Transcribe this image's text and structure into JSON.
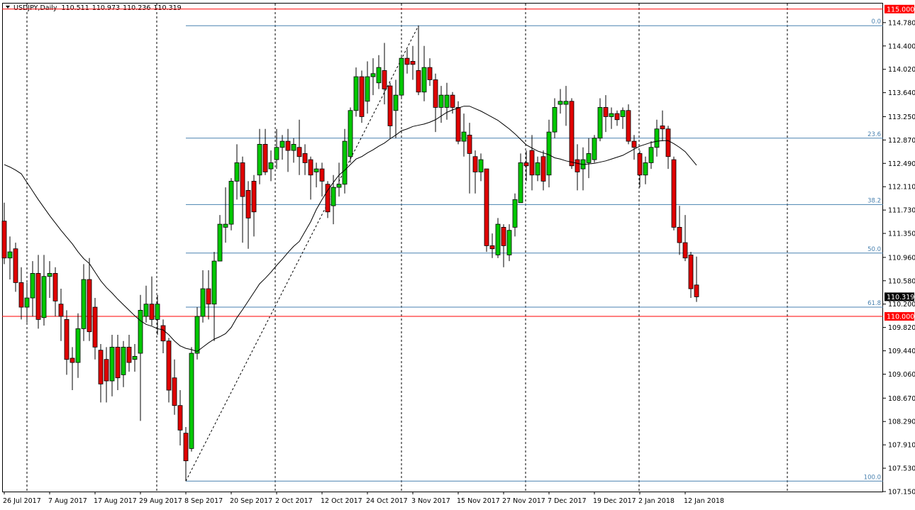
{
  "chart_data": {
    "type": "candlestick",
    "symbol": "USDJPY,Daily",
    "up_color": "#00c800",
    "down_color": "#e00000",
    "ma_color": "#000000",
    "ylim": [
      107.15,
      115.09
    ],
    "yticks": [
      {
        "value": 114.78,
        "label": "114.780"
      },
      {
        "value": 114.4,
        "label": "114.400"
      },
      {
        "value": 114.02,
        "label": "114.020"
      },
      {
        "value": 113.64,
        "label": "113.640"
      },
      {
        "value": 113.25,
        "label": "113.250"
      },
      {
        "value": 112.87,
        "label": "112.870"
      },
      {
        "value": 112.49,
        "label": "112.490"
      },
      {
        "value": 112.11,
        "label": "112.110"
      },
      {
        "value": 111.73,
        "label": "111.730"
      },
      {
        "value": 111.35,
        "label": "111.350"
      },
      {
        "value": 110.96,
        "label": "110.960"
      },
      {
        "value": 110.58,
        "label": "110.580"
      },
      {
        "value": 110.2,
        "label": "110.200"
      },
      {
        "value": 109.82,
        "label": "109.820"
      },
      {
        "value": 109.44,
        "label": "109.440"
      },
      {
        "value": 109.06,
        "label": "109.060"
      },
      {
        "value": 108.67,
        "label": "108.670"
      },
      {
        "value": 108.29,
        "label": "108.290"
      },
      {
        "value": 107.91,
        "label": "107.910"
      },
      {
        "value": 107.53,
        "label": "107.530"
      },
      {
        "value": 107.15,
        "label": "107.150"
      }
    ],
    "levels": [
      {
        "value": 115,
        "label": "115.000",
        "color": "#ff0000"
      },
      {
        "value": 110,
        "label": "110.000",
        "color": "#ff0000"
      }
    ],
    "fibonacci": {
      "color": "#4a82b0",
      "levels": [
        {
          "label": "0.0",
          "value": 114.73
        },
        {
          "label": "23.6",
          "value": 112.9
        },
        {
          "label": "38.2",
          "value": 111.82
        },
        {
          "label": "50.0",
          "value": 111.03
        },
        {
          "label": "61.8",
          "value": 110.15
        },
        {
          "label": "100.0",
          "value": 107.32
        }
      ]
    },
    "categories": [
      "26 Jul 2017",
      null,
      null,
      null,
      null,
      null,
      null,
      null,
      "7 Aug 2017",
      null,
      null,
      null,
      null,
      null,
      null,
      null,
      "17 Aug 2017",
      null,
      null,
      null,
      null,
      null,
      null,
      null,
      "29 Aug 2017",
      null,
      null,
      null,
      null,
      null,
      null,
      null,
      "8 Sep 2017",
      null,
      null,
      null,
      null,
      null,
      null,
      null,
      "20 Sep 2017",
      null,
      null,
      null,
      null,
      null,
      null,
      null,
      "2 Oct 2017",
      null,
      null,
      null,
      null,
      null,
      null,
      null,
      "12 Oct 2017",
      null,
      null,
      null,
      null,
      null,
      null,
      null,
      "24 Oct 2017",
      null,
      null,
      null,
      null,
      null,
      null,
      null,
      "3 Nov 2017",
      null,
      null,
      null,
      null,
      null,
      null,
      null,
      "15 Nov 2017",
      null,
      null,
      null,
      null,
      null,
      null,
      null,
      "27 Nov 2017",
      null,
      null,
      null,
      null,
      null,
      null,
      null,
      "7 Dec 2017",
      null,
      null,
      null,
      null,
      null,
      null,
      null,
      "19 Dec 2017",
      null,
      null,
      null,
      null,
      null,
      null,
      null,
      "2 Jan 2018",
      null,
      null,
      null,
      null,
      null,
      null,
      null,
      "12 Jan 2018",
      null,
      null
    ],
    "ohlc": [
      [
        111.55,
        111.85,
        110.85,
        110.95
      ],
      [
        110.95,
        111.3,
        110.6,
        111.05
      ],
      [
        111.1,
        111.2,
        110.4,
        110.55
      ],
      [
        110.55,
        110.8,
        109.95,
        110.15
      ],
      [
        110.15,
        110.55,
        109.9,
        110.3
      ],
      [
        110.3,
        110.9,
        110.0,
        110.7
      ],
      [
        110.7,
        111.0,
        109.8,
        109.95
      ],
      [
        109.98,
        111.0,
        109.85,
        110.65
      ],
      [
        110.65,
        110.9,
        110.3,
        110.7
      ],
      [
        110.7,
        110.8,
        110.0,
        110.25
      ],
      [
        110.2,
        110.45,
        109.6,
        110.0
      ],
      [
        109.95,
        110.1,
        109.05,
        109.3
      ],
      [
        109.32,
        109.5,
        108.8,
        109.25
      ],
      [
        109.25,
        110.05,
        109.0,
        109.8
      ],
      [
        109.8,
        110.85,
        109.6,
        110.6
      ],
      [
        110.6,
        110.95,
        109.6,
        109.75
      ],
      [
        110.15,
        110.3,
        109.3,
        109.5
      ],
      [
        109.45,
        109.55,
        108.6,
        108.9
      ],
      [
        109.3,
        109.5,
        108.6,
        108.95
      ],
      [
        108.95,
        109.7,
        108.7,
        109.5
      ],
      [
        109.5,
        109.7,
        108.8,
        109.0
      ],
      [
        109.05,
        109.6,
        108.85,
        109.5
      ],
      [
        109.5,
        109.7,
        109.1,
        109.25
      ],
      [
        109.3,
        109.55,
        109.1,
        109.35
      ],
      [
        109.4,
        110.35,
        108.3,
        110.1
      ],
      [
        110.0,
        110.5,
        109.9,
        110.2
      ],
      [
        110.2,
        110.65,
        109.85,
        109.95
      ],
      [
        109.95,
        110.35,
        109.7,
        110.2
      ],
      [
        109.85,
        109.95,
        109.4,
        109.6
      ],
      [
        109.6,
        109.65,
        108.6,
        108.8
      ],
      [
        109.0,
        109.3,
        108.4,
        108.55
      ],
      [
        108.55,
        108.8,
        107.9,
        108.15
      ],
      [
        108.1,
        108.2,
        107.32,
        107.65
      ],
      [
        107.85,
        109.5,
        107.8,
        109.4
      ],
      [
        109.4,
        110.15,
        109.3,
        110.0
      ],
      [
        110.0,
        110.75,
        109.9,
        110.45
      ],
      [
        110.45,
        110.75,
        109.95,
        110.2
      ],
      [
        110.2,
        111.05,
        109.6,
        110.9
      ],
      [
        110.9,
        111.65,
        110.9,
        111.5
      ],
      [
        111.45,
        112.1,
        111.2,
        111.5
      ],
      [
        111.5,
        112.25,
        111.4,
        112.2
      ],
      [
        112.2,
        112.8,
        111.9,
        112.5
      ],
      [
        112.5,
        112.6,
        111.2,
        111.95
      ],
      [
        112.05,
        112.2,
        111.1,
        111.6
      ],
      [
        112.2,
        112.3,
        111.3,
        111.7
      ],
      [
        112.3,
        113.05,
        112.15,
        112.8
      ],
      [
        112.8,
        113.05,
        112.3,
        112.35
      ],
      [
        112.4,
        112.7,
        112.2,
        112.5
      ],
      [
        112.55,
        113.05,
        112.4,
        112.75
      ],
      [
        112.75,
        112.95,
        112.55,
        112.85
      ],
      [
        112.85,
        113.05,
        112.35,
        112.7
      ],
      [
        112.7,
        112.9,
        112.5,
        112.8
      ],
      [
        112.75,
        113.2,
        112.3,
        112.6
      ],
      [
        112.65,
        112.8,
        112.3,
        112.5
      ],
      [
        112.55,
        112.6,
        111.9,
        112.3
      ],
      [
        112.35,
        112.5,
        112.1,
        112.4
      ],
      [
        112.4,
        112.5,
        111.95,
        112.2
      ],
      [
        112.15,
        112.2,
        111.6,
        111.7
      ],
      [
        111.8,
        112.3,
        111.5,
        112.1
      ],
      [
        112.1,
        112.5,
        111.95,
        112.15
      ],
      [
        112.15,
        113.05,
        112.0,
        112.85
      ],
      [
        112.6,
        113.4,
        112.5,
        113.35
      ],
      [
        113.35,
        114.05,
        113.25,
        113.9
      ],
      [
        113.9,
        114.0,
        113.15,
        113.25
      ],
      [
        113.5,
        114.15,
        113.3,
        113.9
      ],
      [
        113.9,
        114.2,
        113.6,
        113.95
      ],
      [
        113.8,
        114.25,
        113.7,
        114.05
      ],
      [
        114.0,
        114.45,
        113.45,
        113.7
      ],
      [
        113.75,
        113.8,
        112.9,
        113.1
      ],
      [
        113.35,
        113.85,
        112.9,
        113.6
      ],
      [
        113.6,
        114.25,
        113.55,
        114.2
      ],
      [
        114.2,
        114.35,
        113.95,
        114.1
      ],
      [
        114.15,
        114.4,
        113.85,
        114.1
      ],
      [
        114.0,
        114.73,
        113.6,
        113.65
      ],
      [
        113.65,
        114.4,
        113.5,
        114.05
      ],
      [
        114.05,
        114.2,
        113.75,
        113.85
      ],
      [
        113.85,
        113.95,
        113.0,
        113.4
      ],
      [
        113.4,
        113.75,
        113.15,
        113.6
      ],
      [
        113.4,
        113.8,
        113.2,
        113.6
      ],
      [
        113.6,
        113.65,
        113.3,
        113.4
      ],
      [
        113.4,
        113.5,
        112.8,
        112.85
      ],
      [
        112.85,
        113.3,
        112.6,
        113.0
      ],
      [
        112.95,
        113.15,
        112.0,
        112.65
      ],
      [
        112.6,
        112.7,
        112.0,
        112.35
      ],
      [
        112.35,
        112.65,
        112.2,
        112.55
      ],
      [
        112.4,
        112.4,
        111.05,
        111.15
      ],
      [
        111.15,
        111.35,
        110.95,
        111.1
      ],
      [
        111.0,
        111.6,
        110.95,
        111.5
      ],
      [
        111.45,
        111.5,
        110.8,
        111.15
      ],
      [
        111.0,
        111.5,
        110.9,
        111.4
      ],
      [
        111.45,
        112.0,
        111.3,
        111.9
      ],
      [
        111.85,
        112.65,
        111.85,
        112.5
      ],
      [
        112.5,
        112.7,
        112.2,
        112.45
      ],
      [
        112.7,
        112.95,
        112.05,
        112.3
      ],
      [
        112.3,
        112.6,
        112.2,
        112.5
      ],
      [
        112.6,
        112.7,
        112.05,
        112.2
      ],
      [
        112.3,
        113.2,
        112.1,
        113.0
      ],
      [
        113.0,
        113.55,
        112.9,
        113.4
      ],
      [
        113.45,
        113.7,
        113.3,
        113.5
      ],
      [
        113.45,
        113.75,
        113.1,
        113.5
      ],
      [
        113.5,
        113.55,
        112.4,
        112.45
      ],
      [
        112.55,
        112.8,
        112.05,
        112.35
      ],
      [
        112.4,
        112.75,
        112.05,
        112.55
      ],
      [
        112.5,
        112.9,
        112.25,
        112.65
      ],
      [
        112.55,
        112.95,
        112.5,
        112.9
      ],
      [
        112.9,
        113.55,
        112.85,
        113.4
      ],
      [
        113.4,
        113.6,
        113.0,
        113.25
      ],
      [
        113.25,
        113.4,
        113.05,
        113.3
      ],
      [
        113.3,
        113.35,
        113.1,
        113.2
      ],
      [
        113.25,
        113.4,
        113.05,
        113.35
      ],
      [
        113.35,
        113.45,
        112.8,
        112.85
      ],
      [
        112.85,
        112.95,
        112.55,
        112.75
      ],
      [
        112.65,
        112.7,
        112.1,
        112.3
      ],
      [
        112.3,
        112.6,
        112.15,
        112.5
      ],
      [
        112.5,
        112.85,
        112.4,
        112.75
      ],
      [
        112.75,
        113.2,
        112.6,
        113.05
      ],
      [
        113.1,
        113.35,
        112.85,
        113.05
      ],
      [
        113.05,
        113.1,
        112.4,
        112.6
      ],
      [
        112.55,
        112.6,
        111.4,
        111.45
      ],
      [
        111.45,
        111.8,
        111.0,
        111.2
      ],
      [
        111.2,
        111.65,
        110.9,
        110.95
      ],
      [
        111.0,
        111.05,
        110.3,
        110.45
      ],
      [
        110.511,
        110.973,
        110.236,
        110.319
      ]
    ],
    "moving_average": [
      112.47,
      112.43,
      112.38,
      112.32,
      112.18,
      112.04,
      111.9,
      111.77,
      111.64,
      111.52,
      111.4,
      111.29,
      111.18,
      111.05,
      110.94,
      110.86,
      110.72,
      110.58,
      110.47,
      110.38,
      110.28,
      110.19,
      110.1,
      110.01,
      109.93,
      109.87,
      109.84,
      109.8,
      109.78,
      109.7,
      109.6,
      109.52,
      109.48,
      109.46,
      109.43,
      109.5,
      109.57,
      109.63,
      109.67,
      109.72,
      109.82,
      109.98,
      110.11,
      110.25,
      110.39,
      110.53,
      110.62,
      110.72,
      110.83,
      110.93,
      111.04,
      111.14,
      111.22,
      111.38,
      111.54,
      111.74,
      111.9,
      112.05,
      112.18,
      112.3,
      112.38,
      112.47,
      112.56,
      112.6,
      112.66,
      112.71,
      112.77,
      112.82,
      112.89,
      112.95,
      113.02,
      113.05,
      113.09,
      113.11,
      113.13,
      113.16,
      113.2,
      113.26,
      113.32,
      113.36,
      113.39,
      113.42,
      113.42,
      113.38,
      113.34,
      113.29,
      113.24,
      113.19,
      113.12,
      113.05,
      112.97,
      112.88,
      112.79,
      112.74,
      112.69,
      112.66,
      112.63,
      112.58,
      112.56,
      112.53,
      112.51,
      112.49,
      112.47,
      112.48,
      112.49,
      112.51,
      112.53,
      112.56,
      112.59,
      112.62,
      112.67,
      112.72,
      112.77,
      112.8,
      112.83,
      112.85,
      112.86,
      112.86,
      112.81,
      112.75,
      112.68,
      112.57,
      112.46
    ]
  }
}
